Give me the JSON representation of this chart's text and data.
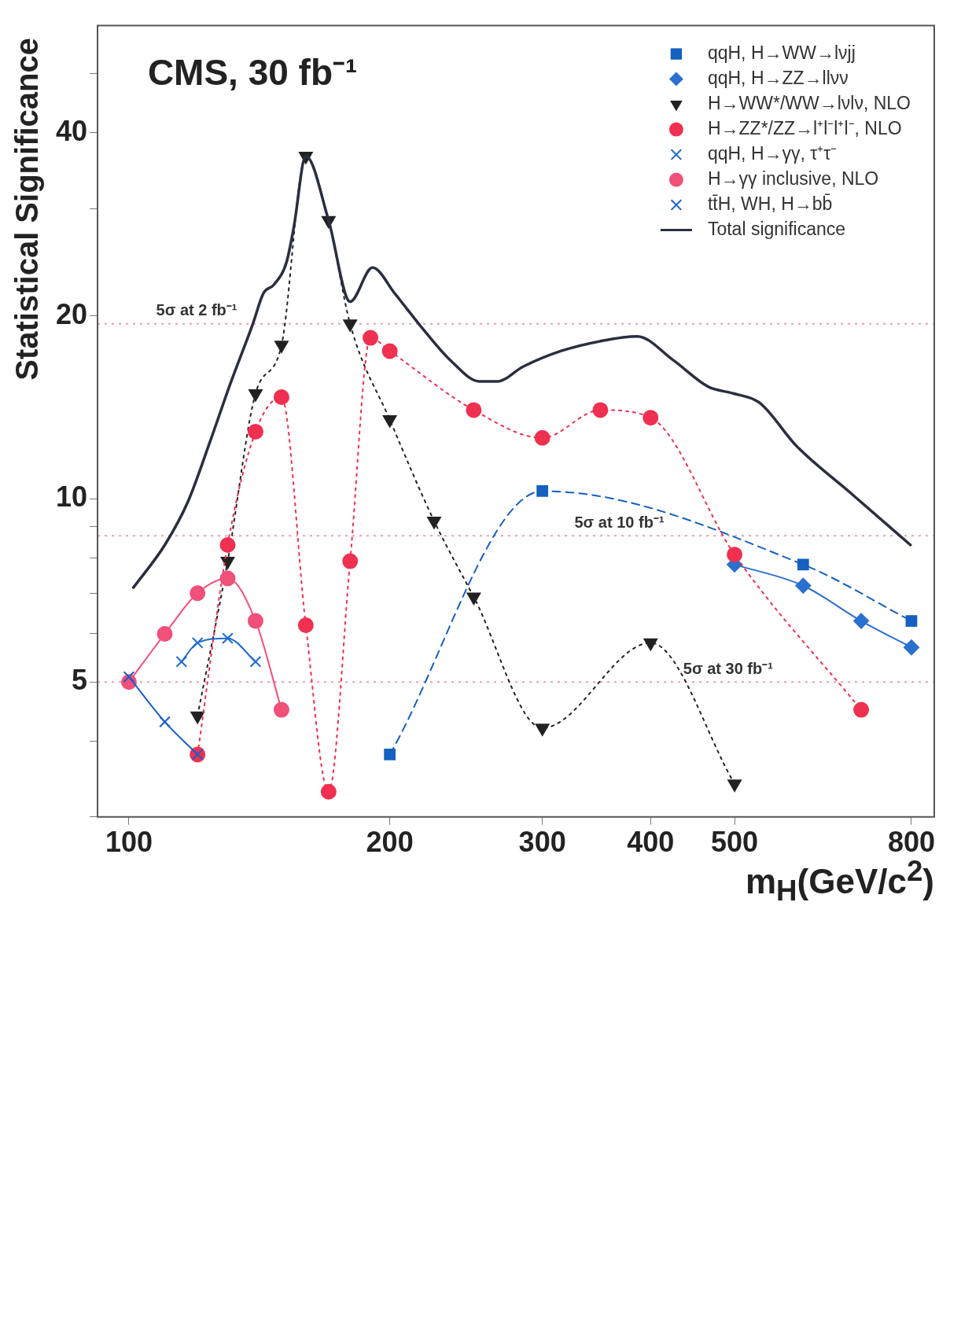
{
  "chart_data": {
    "type": "line",
    "title": "CMS, 30 fb⁻¹",
    "xlabel": "m$_{H}$(GeV/c$^{2}$)",
    "ylabel": "Statistical Significance",
    "log": "xy",
    "xlim": [
      92,
      850
    ],
    "xticks": [
      100,
      200,
      300,
      400,
      500,
      800
    ],
    "ylim": [
      3,
      60
    ],
    "yticks": [
      {
        "value": 3,
        "label": null
      },
      {
        "value": 4,
        "label": null
      },
      5,
      {
        "value": 6,
        "label": null
      },
      {
        "value": 7,
        "label": null
      },
      {
        "value": 8,
        "label": null
      },
      {
        "value": 9,
        "label": null
      },
      10,
      20,
      {
        "value": 30,
        "label": null
      },
      40,
      {
        "value": 50,
        "label": null
      }
    ],
    "legend": "top right",
    "grid": false,
    "ref_lines": [
      {
        "axis": "y",
        "value": 19.4,
        "label": "5σ at 2 fb⁻¹",
        "color": "#e8a0b0",
        "line_style": "dotted"
      },
      {
        "axis": "y",
        "value": 8.7,
        "label": "5σ at 10 fb⁻¹",
        "color": "#e8a0b0",
        "line_style": "dotted"
      },
      {
        "axis": "y",
        "value": 5,
        "label": "5σ at 30 fb⁻¹",
        "color": "#e8a0b0",
        "line_style": "dotted"
      }
    ],
    "series": [
      {
        "name": "qqH, H→WW→lνjj",
        "color": "#1560c0",
        "marker": "square",
        "line_style": "dashed",
        "x": [
          200,
          300,
          600,
          800
        ],
        "values": [
          3.8,
          10.3,
          7.8,
          6.3
        ]
      },
      {
        "name": "qqH, H→ZZ→llνν",
        "color": "#2a70d0",
        "marker": "diamond",
        "line_style": "solid",
        "x": [
          500,
          600,
          700,
          800
        ],
        "values": [
          7.8,
          7.2,
          6.3,
          5.7
        ]
      },
      {
        "name": "H→WW*/WW→lνlν, NLO",
        "color": "#222222",
        "marker": "triangle",
        "line_style": "dotted",
        "x": [
          120,
          130,
          140,
          150,
          160,
          170,
          180,
          200,
          225,
          250,
          300,
          400,
          500
        ],
        "values": [
          4.4,
          7.9,
          14.9,
          17.9,
          36.6,
          28.7,
          19.4,
          13.5,
          9.2,
          6.9,
          4.2,
          5.8,
          3.4
        ]
      },
      {
        "name": "H→ZZ*/ZZ→l⁺l⁻l⁺l⁻, NLO",
        "color": "#f03050",
        "marker": "circle",
        "line_style": "dotted",
        "x": [
          120,
          130,
          140,
          150,
          160,
          170,
          180,
          190,
          200,
          250,
          300,
          350,
          400,
          500,
          700
        ],
        "values": [
          3.8,
          8.4,
          12.9,
          14.7,
          6.2,
          3.3,
          7.9,
          18.4,
          17.5,
          14.0,
          12.6,
          14.0,
          13.6,
          8.1,
          4.5
        ]
      },
      {
        "name": "qqH, H→γγ, τ⁺τ⁻",
        "color": "#1e6ad0",
        "marker": "cross",
        "line_style": "solid",
        "x": [
          115,
          120,
          130,
          140
        ],
        "values": [
          5.4,
          5.8,
          5.9,
          5.4
        ]
      },
      {
        "name": "H→γγ inclusive, NLO",
        "color": "#f0507a",
        "marker": "circle",
        "line_style": "solid",
        "x": [
          100,
          110,
          120,
          130,
          140,
          150
        ],
        "values": [
          5.0,
          6.0,
          7.0,
          7.4,
          6.3,
          4.5
        ]
      },
      {
        "name": "tt̄H, WH, H→bb̄",
        "color": "#1a5fc8",
        "marker": "cross",
        "line_style": "solid",
        "x": [
          100,
          110,
          120
        ],
        "values": [
          5.1,
          4.3,
          3.8
        ]
      },
      {
        "name": "Total significance",
        "color": "#2a2e40",
        "marker": "none",
        "line_style": "solid",
        "x": [
          101.2,
          110,
          117,
          124,
          131,
          139,
          143,
          147,
          152,
          155,
          160,
          170,
          180,
          191,
          203,
          218,
          235,
          254,
          266,
          285,
          315,
          352,
          386,
          425,
          466,
          499,
          534,
          590,
          682,
          798
        ],
        "values": [
          7.15,
          8.4,
          9.9,
          12.4,
          15.5,
          19.4,
          21.8,
          22.5,
          24.5,
          28,
          36.6,
          28.7,
          21.1,
          24.0,
          21.7,
          19.1,
          16.9,
          15.6,
          15.6,
          16.5,
          17.5,
          18.2,
          18.5,
          16.9,
          15.3,
          14.9,
          14.4,
          12.2,
          10.2,
          8.4
        ]
      }
    ]
  }
}
